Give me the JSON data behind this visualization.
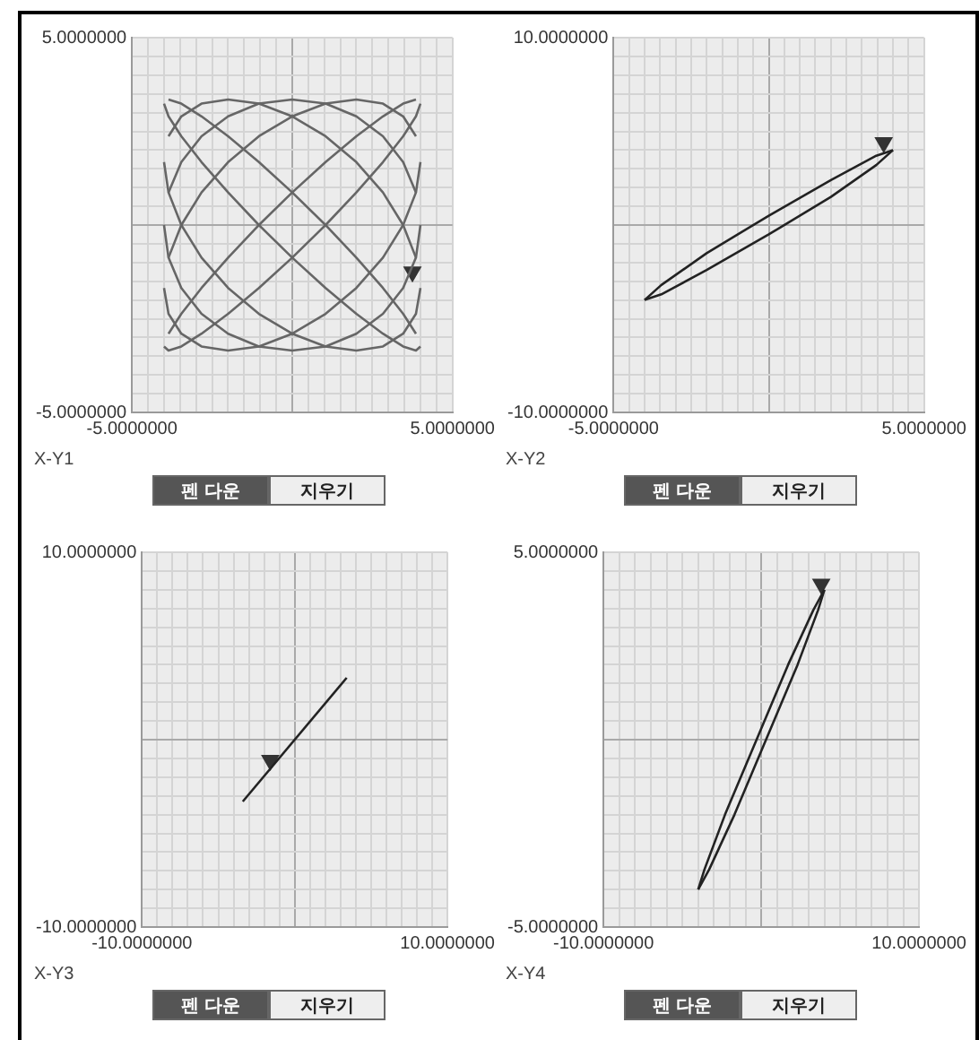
{
  "chart_data": [
    {
      "type": "line",
      "title": "X-Y1",
      "marker": "none",
      "grid": true,
      "xlim": [
        -5,
        5
      ],
      "ylim": [
        -5,
        5
      ],
      "xticks": [
        {
          "value": -5,
          "label": "-5.0000000"
        },
        {
          "value": -4.5,
          "label": null
        },
        {
          "value": -4,
          "label": null
        },
        {
          "value": -3.5,
          "label": null
        },
        {
          "value": -3,
          "label": null
        },
        {
          "value": -2.5,
          "label": null
        },
        {
          "value": -2,
          "label": null
        },
        {
          "value": -1.5,
          "label": null
        },
        {
          "value": -1,
          "label": null
        },
        {
          "value": -0.5,
          "label": null
        },
        {
          "value": 0,
          "label": null
        },
        {
          "value": 0.5,
          "label": null
        },
        {
          "value": 1,
          "label": null
        },
        {
          "value": 1.5,
          "label": null
        },
        {
          "value": 2,
          "label": null
        },
        {
          "value": 2.5,
          "label": null
        },
        {
          "value": 3,
          "label": null
        },
        {
          "value": 3.5,
          "label": null
        },
        {
          "value": 4,
          "label": null
        },
        {
          "value": 4.5,
          "label": null
        },
        {
          "value": 5,
          "label": "5.0000000"
        }
      ],
      "yticks": [
        {
          "value": -5,
          "label": "-5.0000000"
        },
        {
          "value": -4.5,
          "label": null
        },
        {
          "value": -4,
          "label": null
        },
        {
          "value": -3.5,
          "label": null
        },
        {
          "value": -3,
          "label": null
        },
        {
          "value": -2.5,
          "label": null
        },
        {
          "value": -2,
          "label": null
        },
        {
          "value": -1.5,
          "label": null
        },
        {
          "value": -1,
          "label": null
        },
        {
          "value": -0.5,
          "label": null
        },
        {
          "value": 0,
          "label": null
        },
        {
          "value": 0.5,
          "label": null
        },
        {
          "value": 1,
          "label": null
        },
        {
          "value": 1.5,
          "label": null
        },
        {
          "value": 2,
          "label": null
        },
        {
          "value": 2.5,
          "label": null
        },
        {
          "value": 3,
          "label": null
        },
        {
          "value": 3.5,
          "label": null
        },
        {
          "value": 4,
          "label": null
        },
        {
          "value": 4.5,
          "label": null
        },
        {
          "value": 5,
          "label": "5.0000000"
        }
      ],
      "series": [
        {
          "color": "#666666",
          "x": [
            4,
            3.86,
            3.46,
            2.83,
            2,
            1.04,
            0,
            -1.04,
            -2,
            -2.83,
            -3.46,
            -3.86,
            -4
          ],
          "values": [
            3.24,
            2.9,
            2.37,
            1.68,
            0.87,
            0,
            -0.87,
            -1.68,
            -2.37,
            -2.9,
            -3.24,
            -3.35,
            -3.24
          ]
        },
        {
          "color": "#666666",
          "x": [
            -3.86,
            -3.46,
            -2.83,
            -2,
            -1.04,
            0,
            1.04,
            2,
            2.83,
            3.46,
            3.86
          ],
          "values": [
            -2.9,
            -2.37,
            -1.68,
            -0.87,
            0,
            0.87,
            1.68,
            2.37,
            2.9,
            3.24,
            3.35
          ]
        },
        {
          "color": "#666666",
          "x": [
            4,
            3.86,
            3.46,
            2.83,
            2,
            1.04,
            0,
            -1.04,
            -2,
            -2.83,
            -3.46,
            -3.86,
            -4
          ],
          "values": [
            1.68,
            0.87,
            0,
            -0.87,
            -1.68,
            -2.37,
            -2.9,
            -3.24,
            -3.35,
            -3.24,
            -2.9,
            -2.37,
            -1.68
          ]
        },
        {
          "color": "#666666",
          "x": [
            -3.86,
            -3.46,
            -2.83,
            -2,
            -1.04,
            0,
            1.04,
            2,
            2.83,
            3.46,
            3.86
          ],
          "values": [
            -0.87,
            0,
            0.87,
            1.68,
            2.37,
            2.9,
            3.24,
            3.35,
            3.24,
            2.9,
            2.37
          ]
        },
        {
          "color": "#666666",
          "x": [
            4,
            3.86,
            3.46,
            2.83,
            2,
            1.04,
            0,
            -1.04,
            -2,
            -2.83,
            -3.46,
            -3.86,
            -4
          ],
          "values": [
            0,
            -0.87,
            -1.68,
            -2.37,
            -2.9,
            -3.24,
            -3.35,
            -3.24,
            -2.9,
            -2.37,
            -1.68,
            -0.87,
            0
          ]
        },
        {
          "color": "#666666",
          "x": [
            -3.86,
            -3.46,
            -2.83,
            -2,
            -1.04,
            0,
            1.04,
            2,
            2.83,
            3.46,
            3.86
          ],
          "values": [
            0.87,
            1.68,
            2.37,
            2.9,
            3.24,
            3.35,
            3.24,
            2.9,
            2.37,
            1.68,
            0.87
          ]
        },
        {
          "color": "#666666",
          "x": [
            4,
            3.86,
            3.46,
            2.83,
            2,
            1.04,
            0,
            -1.04,
            -2,
            -2.83,
            -3.46,
            -3.86,
            -4
          ],
          "values": [
            -1.68,
            -2.37,
            -2.9,
            -3.24,
            -3.35,
            -3.24,
            -2.9,
            -2.37,
            -1.68,
            -0.87,
            0,
            0.87,
            1.68
          ]
        },
        {
          "color": "#666666",
          "x": [
            -3.86,
            -3.46,
            -2.83,
            -2,
            -1.04,
            0,
            1.04,
            2,
            2.83,
            3.46,
            3.86
          ],
          "values": [
            2.37,
            2.9,
            3.24,
            3.35,
            3.24,
            2.9,
            2.37,
            1.68,
            0.87,
            0,
            -0.87
          ]
        },
        {
          "color": "#666666",
          "x": [
            4,
            3.86,
            3.46,
            2.83,
            2,
            1.04,
            0,
            -1.04,
            -2,
            -2.83,
            -3.46,
            -3.86,
            -4
          ],
          "values": [
            -3.24,
            -3.35,
            -3.24,
            -2.9,
            -2.37,
            -1.68,
            -0.87,
            0,
            0.87,
            1.68,
            2.37,
            2.9,
            3.24
          ]
        },
        {
          "color": "#666666",
          "x": [
            -3.86,
            -3.46,
            -2.83,
            -2,
            -1.04,
            0,
            1.04,
            2,
            2.83,
            3.46,
            3.86
          ],
          "values": [
            3.35,
            3.24,
            2.9,
            2.37,
            1.68,
            0.87,
            0,
            -0.87,
            -1.68,
            -2.37,
            -2.9
          ]
        },
        {
          "type": "scatter",
          "marker": "triangle",
          "color": "#333333",
          "x": [
            3.75
          ],
          "values": [
            -1.25
          ]
        }
      ],
      "annotations": [
        "펜 다운",
        "지우기"
      ]
    },
    {
      "type": "line",
      "title": "X-Y2",
      "marker": "none",
      "grid": true,
      "xlim": [
        -5,
        5
      ],
      "ylim": [
        -10,
        10
      ],
      "xticks": [
        {
          "value": -5,
          "label": "-5.0000000"
        },
        {
          "value": -4.5,
          "label": null
        },
        {
          "value": -4,
          "label": null
        },
        {
          "value": -3.5,
          "label": null
        },
        {
          "value": -3,
          "label": null
        },
        {
          "value": -2.5,
          "label": null
        },
        {
          "value": -2,
          "label": null
        },
        {
          "value": -1.5,
          "label": null
        },
        {
          "value": -1,
          "label": null
        },
        {
          "value": -0.5,
          "label": null
        },
        {
          "value": 0,
          "label": null
        },
        {
          "value": 0.5,
          "label": null
        },
        {
          "value": 1,
          "label": null
        },
        {
          "value": 1.5,
          "label": null
        },
        {
          "value": 2,
          "label": null
        },
        {
          "value": 2.5,
          "label": null
        },
        {
          "value": 3,
          "label": null
        },
        {
          "value": 3.5,
          "label": null
        },
        {
          "value": 4,
          "label": null
        },
        {
          "value": 4.5,
          "label": null
        },
        {
          "value": 5,
          "label": "5.0000000"
        }
      ],
      "yticks": [
        {
          "value": -10,
          "label": "-10.0000000"
        },
        {
          "value": -9,
          "label": null
        },
        {
          "value": -8,
          "label": null
        },
        {
          "value": -7,
          "label": null
        },
        {
          "value": -6,
          "label": null
        },
        {
          "value": -5,
          "label": null
        },
        {
          "value": -4,
          "label": null
        },
        {
          "value": -3,
          "label": null
        },
        {
          "value": -2,
          "label": null
        },
        {
          "value": -1,
          "label": null
        },
        {
          "value": 0,
          "label": null
        },
        {
          "value": 1,
          "label": null
        },
        {
          "value": 2,
          "label": null
        },
        {
          "value": 3,
          "label": null
        },
        {
          "value": 4,
          "label": null
        },
        {
          "value": 5,
          "label": null
        },
        {
          "value": 6,
          "label": null
        },
        {
          "value": 7,
          "label": null
        },
        {
          "value": 8,
          "label": null
        },
        {
          "value": 9,
          "label": null
        },
        {
          "value": 10,
          "label": "10.0000000"
        }
      ],
      "series": [
        {
          "color": "#222222",
          "x": [
            4,
            3.46,
            2,
            0,
            -2,
            -3.46,
            -4
          ],
          "values": [
            4,
            3.2,
            1.5,
            -0.5,
            -2.4,
            -3.7,
            -4
          ]
        },
        {
          "color": "#222222",
          "x": [
            -4,
            -3.46,
            -2,
            0,
            2,
            3.46,
            4
          ],
          "values": [
            -4,
            -3.2,
            -1.5,
            0.5,
            2.4,
            3.7,
            4
          ]
        },
        {
          "type": "scatter",
          "marker": "triangle",
          "color": "#333333",
          "x": [
            3.7
          ],
          "values": [
            4.4
          ]
        }
      ],
      "annotations": [
        "펜 다운",
        "지우기"
      ]
    },
    {
      "type": "line",
      "title": "X-Y3",
      "marker": "none",
      "grid": true,
      "xlim": [
        -10,
        10
      ],
      "ylim": [
        -10,
        10
      ],
      "xticks": [
        {
          "value": -10,
          "label": "-10.0000000"
        },
        {
          "value": -9,
          "label": null
        },
        {
          "value": -8,
          "label": null
        },
        {
          "value": -7,
          "label": null
        },
        {
          "value": -6,
          "label": null
        },
        {
          "value": -5,
          "label": null
        },
        {
          "value": -4,
          "label": null
        },
        {
          "value": -3,
          "label": null
        },
        {
          "value": -2,
          "label": null
        },
        {
          "value": -1,
          "label": null
        },
        {
          "value": 0,
          "label": null
        },
        {
          "value": 1,
          "label": null
        },
        {
          "value": 2,
          "label": null
        },
        {
          "value": 3,
          "label": null
        },
        {
          "value": 4,
          "label": null
        },
        {
          "value": 5,
          "label": null
        },
        {
          "value": 6,
          "label": null
        },
        {
          "value": 7,
          "label": null
        },
        {
          "value": 8,
          "label": null
        },
        {
          "value": 9,
          "label": null
        },
        {
          "value": 10,
          "label": "10.0000000"
        }
      ],
      "yticks": [
        {
          "value": -10,
          "label": "-10.0000000"
        },
        {
          "value": -9,
          "label": null
        },
        {
          "value": -8,
          "label": null
        },
        {
          "value": -7,
          "label": null
        },
        {
          "value": -6,
          "label": null
        },
        {
          "value": -5,
          "label": null
        },
        {
          "value": -4,
          "label": null
        },
        {
          "value": -3,
          "label": null
        },
        {
          "value": -2,
          "label": null
        },
        {
          "value": -1,
          "label": null
        },
        {
          "value": 0,
          "label": null
        },
        {
          "value": 1,
          "label": null
        },
        {
          "value": 2,
          "label": null
        },
        {
          "value": 3,
          "label": null
        },
        {
          "value": 4,
          "label": null
        },
        {
          "value": 5,
          "label": null
        },
        {
          "value": 6,
          "label": null
        },
        {
          "value": 7,
          "label": null
        },
        {
          "value": 8,
          "label": null
        },
        {
          "value": 9,
          "label": null
        },
        {
          "value": 10,
          "label": "10.0000000"
        }
      ],
      "series": [
        {
          "color": "#222222",
          "x": [
            -3.4,
            3.4
          ],
          "values": [
            -3.3,
            3.3
          ]
        },
        {
          "type": "scatter",
          "marker": "triangle",
          "color": "#333333",
          "x": [
            -1.6
          ],
          "values": [
            -1.1
          ]
        }
      ],
      "annotations": [
        "펜 다운",
        "지우기"
      ]
    },
    {
      "type": "line",
      "title": "X-Y4",
      "marker": "none",
      "grid": true,
      "xlim": [
        -10,
        10
      ],
      "ylim": [
        -5,
        5
      ],
      "xticks": [
        {
          "value": -10,
          "label": "-10.0000000"
        },
        {
          "value": -9,
          "label": null
        },
        {
          "value": -8,
          "label": null
        },
        {
          "value": -7,
          "label": null
        },
        {
          "value": -6,
          "label": null
        },
        {
          "value": -5,
          "label": null
        },
        {
          "value": -4,
          "label": null
        },
        {
          "value": -3,
          "label": null
        },
        {
          "value": -2,
          "label": null
        },
        {
          "value": -1,
          "label": null
        },
        {
          "value": 0,
          "label": null
        },
        {
          "value": 1,
          "label": null
        },
        {
          "value": 2,
          "label": null
        },
        {
          "value": 3,
          "label": null
        },
        {
          "value": 4,
          "label": null
        },
        {
          "value": 5,
          "label": null
        },
        {
          "value": 6,
          "label": null
        },
        {
          "value": 7,
          "label": null
        },
        {
          "value": 8,
          "label": null
        },
        {
          "value": 9,
          "label": null
        },
        {
          "value": 10,
          "label": "10.0000000"
        }
      ],
      "yticks": [
        {
          "value": -5,
          "label": "-5.0000000"
        },
        {
          "value": -4.5,
          "label": null
        },
        {
          "value": -4,
          "label": null
        },
        {
          "value": -3.5,
          "label": null
        },
        {
          "value": -3,
          "label": null
        },
        {
          "value": -2.5,
          "label": null
        },
        {
          "value": -2,
          "label": null
        },
        {
          "value": -1.5,
          "label": null
        },
        {
          "value": -1,
          "label": null
        },
        {
          "value": -0.5,
          "label": null
        },
        {
          "value": 0,
          "label": null
        },
        {
          "value": 0.5,
          "label": null
        },
        {
          "value": 1,
          "label": null
        },
        {
          "value": 1.5,
          "label": null
        },
        {
          "value": 2,
          "label": null
        },
        {
          "value": 2.5,
          "label": null
        },
        {
          "value": 3,
          "label": null
        },
        {
          "value": 3.5,
          "label": null
        },
        {
          "value": 4,
          "label": null
        },
        {
          "value": 4.5,
          "label": null
        },
        {
          "value": 5,
          "label": "5.0000000"
        }
      ],
      "series": [
        {
          "color": "#222222",
          "x": [
            4,
            3.3,
            1.7,
            -0.3,
            -2.3,
            -3.6,
            -4
          ],
          "values": [
            4,
            3.46,
            2,
            0,
            -2,
            -3.46,
            -4
          ]
        },
        {
          "color": "#222222",
          "x": [
            -4,
            -3.3,
            -1.7,
            0.3,
            2.3,
            3.6,
            4
          ],
          "values": [
            -4,
            -3.46,
            -2,
            0,
            2,
            3.46,
            4
          ]
        },
        {
          "type": "scatter",
          "marker": "triangle",
          "color": "#333333",
          "x": [
            3.8
          ],
          "values": [
            4.15
          ]
        }
      ],
      "annotations": [
        "펜 다운",
        "지우기"
      ]
    }
  ]
}
